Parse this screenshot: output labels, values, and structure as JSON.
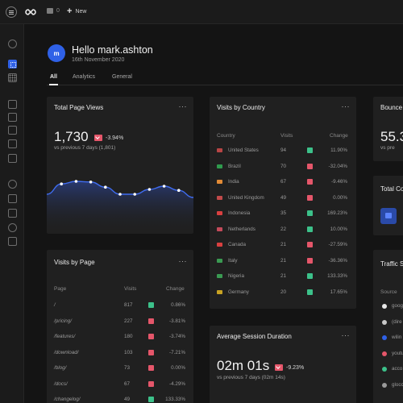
{
  "topbar": {
    "comment_count": "0",
    "new_label": "New"
  },
  "user": {
    "initial": "m",
    "greeting": "Hello mark.ashton",
    "date": "16th November 2020"
  },
  "tabs": [
    {
      "label": "All"
    },
    {
      "label": "Analytics"
    },
    {
      "label": "General"
    }
  ],
  "total_page_views": {
    "title": "Total Page Views",
    "more": "···",
    "value": "1,730",
    "change": "-3.94%",
    "compare": "vs previous 7 days (1,801)",
    "sparkline": [
      0.3,
      0.62,
      0.7,
      0.68,
      0.52,
      0.3,
      0.3,
      0.45,
      0.55,
      0.42,
      0.2
    ]
  },
  "visits_by_country": {
    "title": "Visits by Country",
    "more": "···",
    "headers": {
      "country": "Country",
      "visits": "Visits",
      "change": "Change"
    },
    "rows": [
      {
        "country": "United States",
        "visits": "94",
        "change": "11.90%",
        "trend": "up",
        "flag_color": "#b84545"
      },
      {
        "country": "Brazil",
        "visits": "70",
        "change": "-32.04%",
        "trend": "down",
        "flag_color": "#2f9a4d"
      },
      {
        "country": "India",
        "visits": "67",
        "change": "-9.46%",
        "trend": "down",
        "flag_color": "#e28b36"
      },
      {
        "country": "United Kingdom",
        "visits": "49",
        "change": "0.00%",
        "trend": "down",
        "flag_color": "#c24a4a"
      },
      {
        "country": "Indonesia",
        "visits": "35",
        "change": "169.23%",
        "trend": "up",
        "flag_color": "#d94040"
      },
      {
        "country": "Netherlands",
        "visits": "22",
        "change": "10.00%",
        "trend": "up",
        "flag_color": "#c44a5a"
      },
      {
        "country": "Canada",
        "visits": "21",
        "change": "-27.59%",
        "trend": "down",
        "flag_color": "#d94040"
      },
      {
        "country": "Italy",
        "visits": "21",
        "change": "-36.36%",
        "trend": "down",
        "flag_color": "#3a9a52"
      },
      {
        "country": "Nigeria",
        "visits": "21",
        "change": "133.33%",
        "trend": "up",
        "flag_color": "#3a9a52"
      },
      {
        "country": "Germany",
        "visits": "20",
        "change": "17.65%",
        "trend": "up",
        "flag_color": "#c9a323"
      }
    ]
  },
  "bounce": {
    "title": "Bounce",
    "value": "55.3",
    "compare": "vs pre"
  },
  "total_co": {
    "title": "Total Co"
  },
  "visits_by_page": {
    "title": "Visits by Page",
    "more": "···",
    "headers": {
      "page": "Page",
      "visits": "Visits",
      "change": "Change"
    },
    "rows": [
      {
        "page": "/",
        "visits": "817",
        "change": "0.86%",
        "trend": "up"
      },
      {
        "page": "/pricing/",
        "visits": "227",
        "change": "-3.81%",
        "trend": "down"
      },
      {
        "page": "/features/",
        "visits": "180",
        "change": "-3.74%",
        "trend": "down"
      },
      {
        "page": "/download/",
        "visits": "103",
        "change": "-7.21%",
        "trend": "down"
      },
      {
        "page": "/blog/",
        "visits": "73",
        "change": "0.00%",
        "trend": "down"
      },
      {
        "page": "/docs/",
        "visits": "67",
        "change": "-4.29%",
        "trend": "down"
      },
      {
        "page": "/changelog/",
        "visits": "49",
        "change": "133.33%",
        "trend": "up"
      }
    ]
  },
  "avg_session": {
    "title": "Average Session Duration",
    "more": "···",
    "value": "02m 01s",
    "change": "-9.23%",
    "compare": "vs previous 7 days (02m 14s)"
  },
  "traffic": {
    "title": "Traffic S",
    "source_header": "Source",
    "sources": [
      {
        "name": "goog",
        "color": "#e8e8e8"
      },
      {
        "name": "(dire",
        "color": "#c8c8c8"
      },
      {
        "name": "wilin",
        "color": "#2f61e7"
      },
      {
        "name": "youtu",
        "color": "#e5566a"
      },
      {
        "name": "acco",
        "color": "#3cc18a"
      },
      {
        "name": "glocc",
        "color": "#9a9a9a"
      }
    ]
  },
  "colors": {
    "accent": "#2f61e7",
    "up": "#3cc18a",
    "down": "#e5566a"
  }
}
